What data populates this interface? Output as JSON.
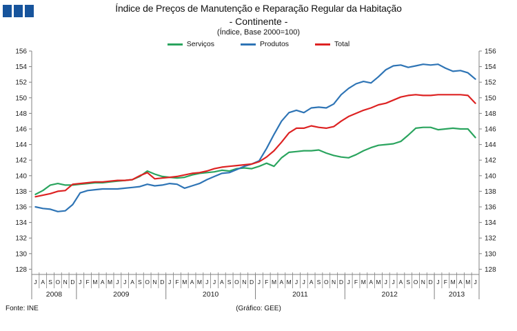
{
  "header": {
    "title_line1": "Índice de Preços de Manutenção e Reparação Regular da Habitação",
    "title_line2": "- Continente -",
    "title_line3": "(Índice, Base 2000=100)"
  },
  "legend": [
    {
      "label": "Serviços",
      "color": "#2aa45e"
    },
    {
      "label": "Produtos",
      "color": "#2e74b5"
    },
    {
      "label": "Total",
      "color": "#dd2222"
    }
  ],
  "footer": {
    "source": "Fonte: INE",
    "credit": "(Gráfico: GEE)"
  },
  "logo_color": "#17549c",
  "axis_color": "#808080",
  "chart_data": {
    "type": "line",
    "title": "Índice de Preços de Manutenção e Reparação Regular da Habitação - Continente - (Índice, Base 2000=100)",
    "ylim": [
      128,
      156
    ],
    "y_tick_step": 2,
    "y_ticks": [
      128,
      130,
      132,
      134,
      136,
      138,
      140,
      142,
      144,
      146,
      148,
      150,
      152,
      154,
      156
    ],
    "grid": false,
    "legend_position": "top-center",
    "x_axis": {
      "years": [
        {
          "label": "2008",
          "months": [
            "J",
            "A",
            "S",
            "O",
            "N",
            "D"
          ]
        },
        {
          "label": "2009",
          "months": [
            "J",
            "F",
            "M",
            "A",
            "M",
            "J",
            "J",
            "A",
            "S",
            "O",
            "N",
            "D"
          ]
        },
        {
          "label": "2010",
          "months": [
            "J",
            "F",
            "M",
            "A",
            "M",
            "J",
            "J",
            "A",
            "S",
            "O",
            "N",
            "D"
          ]
        },
        {
          "label": "2011",
          "months": [
            "J",
            "F",
            "M",
            "A",
            "M",
            "J",
            "J",
            "A",
            "S",
            "O",
            "N",
            "D"
          ]
        },
        {
          "label": "2012",
          "months": [
            "J",
            "F",
            "M",
            "A",
            "M",
            "J",
            "J",
            "A",
            "S",
            "O",
            "N",
            "D"
          ]
        },
        {
          "label": "2013",
          "months": [
            "J",
            "F",
            "M",
            "A",
            "M",
            "J"
          ]
        }
      ]
    },
    "series": [
      {
        "name": "Serviços",
        "color": "#2aa45e",
        "values": [
          137.6,
          138.1,
          138.8,
          139.0,
          138.8,
          138.8,
          138.9,
          139.0,
          139.1,
          139.1,
          139.2,
          139.3,
          139.4,
          139.5,
          139.9,
          140.6,
          140.2,
          139.9,
          139.8,
          139.7,
          139.8,
          140.1,
          140.3,
          140.4,
          140.5,
          140.7,
          140.6,
          140.9,
          141.0,
          140.9,
          141.2,
          141.6,
          141.2,
          142.3,
          143.0,
          143.1,
          143.2,
          143.2,
          143.3,
          142.9,
          142.6,
          142.4,
          142.3,
          142.7,
          143.2,
          143.6,
          143.9,
          144.0,
          144.1,
          144.4,
          145.2,
          146.1,
          146.2,
          146.2,
          145.9,
          146.0,
          146.1,
          146.0,
          146.0,
          144.9
        ]
      },
      {
        "name": "Produtos",
        "color": "#2e74b5",
        "values": [
          136.0,
          135.8,
          135.7,
          135.4,
          135.5,
          136.3,
          137.8,
          138.1,
          138.2,
          138.3,
          138.3,
          138.3,
          138.4,
          138.5,
          138.6,
          138.9,
          138.7,
          138.8,
          139.0,
          138.9,
          138.4,
          138.7,
          139.0,
          139.5,
          139.9,
          140.3,
          140.4,
          140.8,
          141.2,
          141.5,
          141.9,
          143.5,
          145.3,
          147.0,
          148.1,
          148.4,
          148.1,
          148.7,
          148.8,
          148.7,
          149.2,
          150.4,
          151.2,
          151.8,
          152.1,
          151.9,
          152.7,
          153.6,
          154.1,
          154.2,
          153.9,
          154.1,
          154.3,
          154.2,
          154.3,
          153.8,
          153.4,
          153.5,
          153.2,
          152.4
        ]
      },
      {
        "name": "Total",
        "color": "#dd2222",
        "values": [
          137.3,
          137.5,
          137.7,
          138.0,
          138.1,
          138.9,
          139.0,
          139.1,
          139.2,
          139.2,
          139.3,
          139.4,
          139.4,
          139.5,
          140.0,
          140.4,
          139.6,
          139.7,
          139.8,
          139.9,
          140.1,
          140.3,
          140.4,
          140.6,
          140.9,
          141.1,
          141.2,
          141.3,
          141.4,
          141.5,
          141.8,
          142.4,
          143.2,
          144.3,
          145.5,
          146.1,
          146.1,
          146.4,
          146.2,
          146.1,
          146.3,
          147.0,
          147.6,
          148.0,
          148.4,
          148.7,
          149.1,
          149.3,
          149.7,
          150.1,
          150.3,
          150.4,
          150.3,
          150.3,
          150.4,
          150.4,
          150.4,
          150.4,
          150.3,
          149.3
        ]
      }
    ]
  }
}
